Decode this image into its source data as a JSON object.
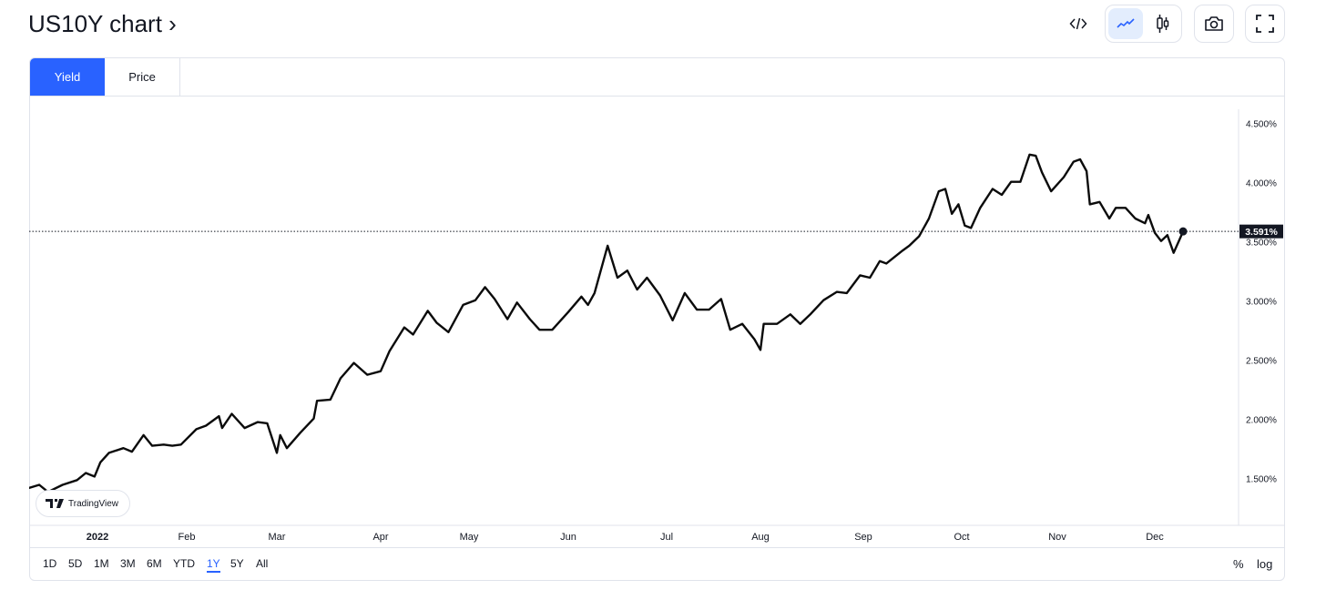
{
  "header": {
    "title": "US10Y chart ›"
  },
  "toolbar": {
    "embed_icon": "code-icon",
    "line_chart_icon": "line-chart-icon",
    "candle_chart_icon": "candlestick-icon",
    "snapshot_icon": "camera-icon",
    "fullscreen_icon": "fullscreen-icon",
    "active_chart_type": "line"
  },
  "tabs": [
    {
      "label": "Yield",
      "active": true
    },
    {
      "label": "Price",
      "active": false
    }
  ],
  "watermark": {
    "label": "TradingView"
  },
  "ranges": [
    {
      "label": "1D"
    },
    {
      "label": "5D"
    },
    {
      "label": "1M"
    },
    {
      "label": "3M"
    },
    {
      "label": "6M"
    },
    {
      "label": "YTD"
    },
    {
      "label": "1Y",
      "active": true
    },
    {
      "label": "5Y"
    },
    {
      "label": "All"
    }
  ],
  "scale_options": {
    "percent": "%",
    "log": "log"
  },
  "colors": {
    "accent": "#2962ff",
    "line": "#0b0b0b",
    "last_price_bg": "#131722"
  },
  "chart_data": {
    "type": "line",
    "title": "",
    "xlabel": "",
    "ylabel": "",
    "ylim": [
      1.1,
      4.76
    ],
    "grid": false,
    "y_ticks": [
      "1.500%",
      "2.000%",
      "2.500%",
      "3.000%",
      "3.500%",
      "4.000%",
      "4.500%"
    ],
    "y_tick_values": [
      1.5,
      2.0,
      2.5,
      3.0,
      3.5,
      4.0,
      4.5
    ],
    "x_ticks": [
      {
        "label": "2022",
        "date": "2022-01-01"
      },
      {
        "label": "Feb",
        "date": "2022-02-01"
      },
      {
        "label": "Mar",
        "date": "2022-03-01"
      },
      {
        "label": "Apr",
        "date": "2022-04-01"
      },
      {
        "label": "May",
        "date": "2022-05-01"
      },
      {
        "label": "Jun",
        "date": "2022-06-01"
      },
      {
        "label": "Jul",
        "date": "2022-07-01"
      },
      {
        "label": "Aug",
        "date": "2022-08-01"
      },
      {
        "label": "Sep",
        "date": "2022-09-01"
      },
      {
        "label": "Oct",
        "date": "2022-10-01"
      },
      {
        "label": "Nov",
        "date": "2022-11-01"
      },
      {
        "label": "Dec",
        "date": "2022-12-01"
      }
    ],
    "last_value": 3.591,
    "last_value_label": "3.591%",
    "series": [
      {
        "x": [
          "2021-12-08",
          "2021-12-12",
          "2021-12-15",
          "2021-12-20",
          "2021-12-25",
          "2021-12-28",
          "2021-12-31",
          "2022-01-02",
          "2022-01-05",
          "2022-01-10",
          "2022-01-13",
          "2022-01-17",
          "2022-01-20",
          "2022-01-24",
          "2022-01-27",
          "2022-01-30",
          "2022-02-04",
          "2022-02-07",
          "2022-02-11",
          "2022-02-12",
          "2022-02-15",
          "2022-02-19",
          "2022-02-23",
          "2022-02-26",
          "2022-03-01",
          "2022-03-02",
          "2022-03-04",
          "2022-03-08",
          "2022-03-12",
          "2022-03-13",
          "2022-03-17",
          "2022-03-20",
          "2022-03-24",
          "2022-03-28",
          "2022-04-01",
          "2022-04-04",
          "2022-04-09",
          "2022-04-12",
          "2022-04-17",
          "2022-04-20",
          "2022-04-24",
          "2022-04-29",
          "2022-05-03",
          "2022-05-06",
          "2022-05-09",
          "2022-05-13",
          "2022-05-16",
          "2022-05-20",
          "2022-05-23",
          "2022-05-27",
          "2022-06-01",
          "2022-06-05",
          "2022-06-07",
          "2022-06-09",
          "2022-06-13",
          "2022-06-16",
          "2022-06-19",
          "2022-06-22",
          "2022-06-25",
          "2022-06-29",
          "2022-07-03",
          "2022-07-07",
          "2022-07-11",
          "2022-07-15",
          "2022-07-19",
          "2022-07-22",
          "2022-07-26",
          "2022-07-30",
          "2022-08-01",
          "2022-08-02",
          "2022-08-06",
          "2022-08-10",
          "2022-08-13",
          "2022-08-16",
          "2022-08-20",
          "2022-08-24",
          "2022-08-27",
          "2022-08-31",
          "2022-09-03",
          "2022-09-06",
          "2022-09-08",
          "2022-09-13",
          "2022-09-15",
          "2022-09-18",
          "2022-09-21",
          "2022-09-24",
          "2022-09-26",
          "2022-09-28",
          "2022-09-30",
          "2022-10-02",
          "2022-10-04",
          "2022-10-07",
          "2022-10-11",
          "2022-10-14",
          "2022-10-17",
          "2022-10-20",
          "2022-10-23",
          "2022-10-25",
          "2022-10-27",
          "2022-10-30",
          "2022-11-03",
          "2022-11-06",
          "2022-11-08",
          "2022-11-10",
          "2022-11-11",
          "2022-11-14",
          "2022-11-17",
          "2022-11-19",
          "2022-11-22",
          "2022-11-25",
          "2022-11-28",
          "2022-11-29",
          "2022-12-01",
          "2022-12-03",
          "2022-12-05",
          "2022-12-07",
          "2022-12-09",
          "2022-12-10"
        ],
        "y": [
          1.42,
          1.45,
          1.39,
          1.45,
          1.49,
          1.55,
          1.52,
          1.64,
          1.72,
          1.76,
          1.73,
          1.87,
          1.78,
          1.79,
          1.78,
          1.79,
          1.92,
          1.95,
          2.03,
          1.93,
          2.05,
          1.93,
          1.98,
          1.97,
          1.72,
          1.87,
          1.76,
          1.89,
          2.01,
          2.16,
          2.17,
          2.35,
          2.48,
          2.38,
          2.41,
          2.58,
          2.78,
          2.72,
          2.92,
          2.82,
          2.74,
          2.97,
          3.01,
          3.12,
          3.02,
          2.85,
          2.99,
          2.85,
          2.76,
          2.76,
          2.91,
          3.04,
          2.97,
          3.07,
          3.47,
          3.2,
          3.26,
          3.1,
          3.2,
          3.05,
          2.84,
          3.07,
          2.93,
          2.93,
          3.02,
          2.76,
          2.81,
          2.68,
          2.59,
          2.81,
          2.81,
          2.89,
          2.81,
          2.89,
          3.01,
          3.08,
          3.07,
          3.22,
          3.2,
          3.34,
          3.32,
          3.43,
          3.47,
          3.55,
          3.7,
          3.93,
          3.95,
          3.74,
          3.82,
          3.64,
          3.62,
          3.79,
          3.95,
          3.9,
          4.01,
          4.01,
          4.24,
          4.23,
          4.09,
          3.93,
          4.05,
          4.18,
          4.2,
          4.1,
          3.82,
          3.84,
          3.7,
          3.79,
          3.79,
          3.7,
          3.66,
          3.73,
          3.58,
          3.51,
          3.56,
          3.41,
          3.53,
          3.591
        ]
      }
    ]
  }
}
